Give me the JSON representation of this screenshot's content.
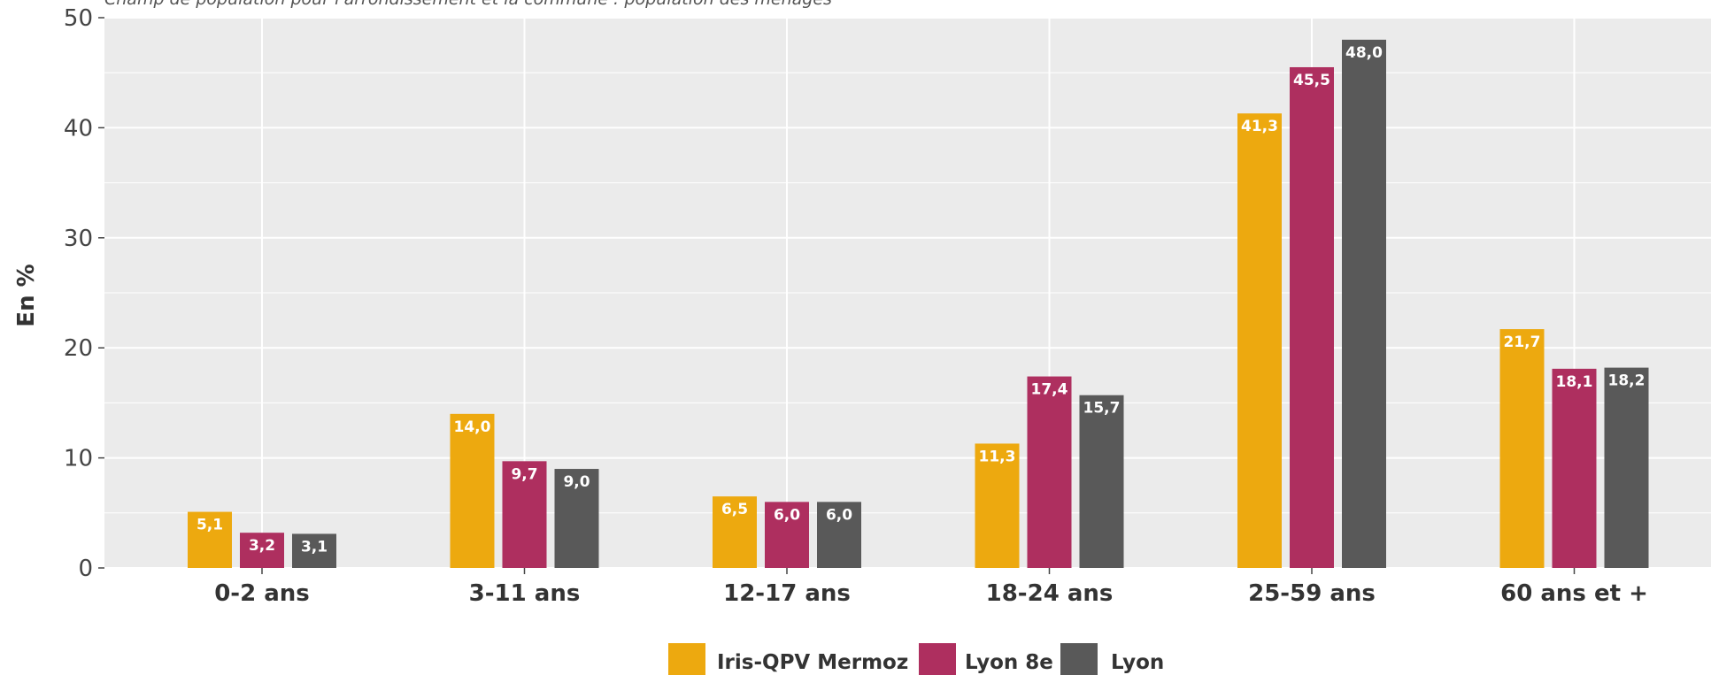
{
  "chart_data": {
    "type": "bar",
    "subtitle": "Champ de population pour l'arrondissement et la commune : population des ménages",
    "ylabel": "En %",
    "xlabel": "",
    "ylim": [
      0,
      50
    ],
    "yticks": [
      0,
      10,
      20,
      30,
      40,
      50
    ],
    "categories": [
      "0-2 ans",
      "3-11 ans",
      "12-17 ans",
      "18-24 ans",
      "25-59 ans",
      "60 ans et +"
    ],
    "series": [
      {
        "name": "Iris-QPV Mermoz",
        "color": "#EDA90F",
        "values": [
          5.1,
          14.0,
          6.5,
          11.3,
          41.3,
          21.7
        ],
        "labels": [
          "5,1",
          "14,0",
          "6,5",
          "11,3",
          "41,3",
          "21,7"
        ]
      },
      {
        "name": "Lyon 8e",
        "color": "#AE2F5F",
        "values": [
          3.2,
          9.7,
          6.0,
          17.4,
          45.5,
          18.1
        ],
        "labels": [
          "3,2",
          "9,7",
          "6,0",
          "17,4",
          "45,5",
          "18,1"
        ]
      },
      {
        "name": "Lyon",
        "color": "#595959",
        "values": [
          3.1,
          9.0,
          6.0,
          15.7,
          48.0,
          18.2
        ],
        "labels": [
          "3,1",
          "9,0",
          "6,0",
          "15,7",
          "48,0",
          "18,2"
        ]
      }
    ],
    "grid": true,
    "legend_position": "bottom-center",
    "plot_background": "#EBEBEB"
  }
}
